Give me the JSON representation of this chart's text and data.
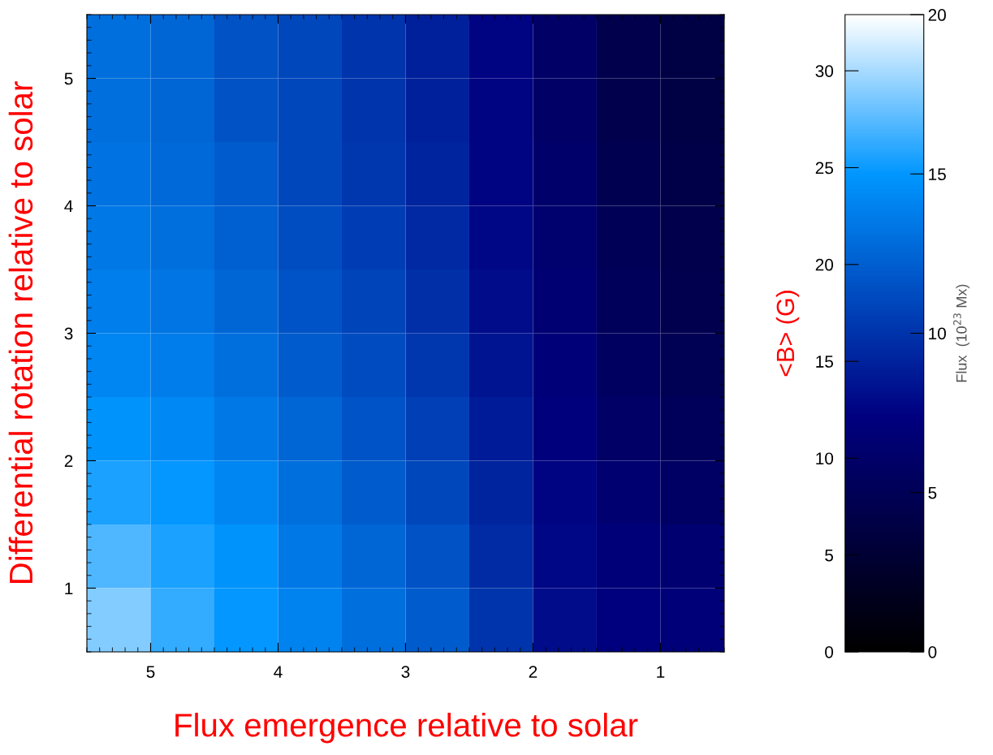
{
  "chart_data": {
    "type": "heatmap",
    "xlabel": "Flux emergence relative to solar",
    "ylabel": "Differential rotation relative to solar",
    "clabel": "Flux  (10$^{23}$ Mx)",
    "y2label": "<B> (G)",
    "x": [
      5.25,
      4.75,
      4.25,
      3.75,
      3.25,
      2.75,
      2.25,
      1.75,
      1.25,
      0.75
    ],
    "y": [
      5.25,
      4.75,
      4.25,
      3.75,
      3.25,
      2.75,
      2.25,
      1.75,
      1.25,
      0.75
    ],
    "xlim": [
      5.5,
      0.5
    ],
    "xticks": [
      5,
      4,
      3,
      2,
      1
    ],
    "ylim": [
      0.5,
      5.5
    ],
    "yticks": [
      1,
      2,
      3,
      4,
      5
    ],
    "cells": [
      [
        13,
        12.5,
        11.5,
        11,
        10,
        9,
        7.5,
        6,
        4.5,
        4
      ],
      [
        13,
        12.5,
        11.5,
        11,
        10,
        9,
        7.5,
        6,
        4.5,
        4
      ],
      [
        13.2,
        12.7,
        12,
        11,
        10.2,
        9.2,
        7.6,
        6.2,
        4.7,
        4.2
      ],
      [
        13.5,
        13,
        12.2,
        11.3,
        10.5,
        9.5,
        7.8,
        6.4,
        5,
        4.4
      ],
      [
        13.8,
        13.3,
        12.5,
        11.6,
        10.8,
        9.8,
        8,
        6.6,
        5.3,
        4.6
      ],
      [
        14.2,
        13.7,
        13,
        12,
        11.2,
        10.2,
        8.4,
        7,
        5.6,
        4.9
      ],
      [
        14.8,
        14.3,
        13.5,
        12.5,
        11.6,
        10.6,
        8.8,
        7.2,
        6,
        5.3
      ],
      [
        15.5,
        15,
        14.2,
        13,
        12,
        11,
        9.2,
        7.5,
        6.5,
        5.8
      ],
      [
        16.5,
        15.5,
        14.8,
        13.5,
        12.5,
        11.5,
        9.6,
        7.8,
        7,
        6.5
      ],
      [
        17.5,
        16,
        15,
        14,
        13,
        12,
        10,
        8,
        7.3,
        7
      ]
    ],
    "clim": [
      0,
      20
    ],
    "cticks": [
      0,
      5,
      10,
      15,
      20
    ],
    "y2lim": [
      0,
      32.9
    ],
    "y2ticks": [
      0,
      5,
      10,
      15,
      20,
      25,
      30
    ]
  }
}
